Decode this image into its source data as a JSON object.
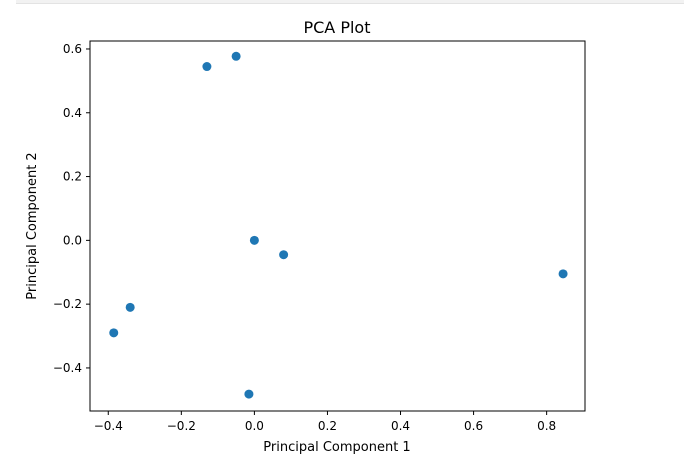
{
  "chart_data": {
    "type": "scatter",
    "title": "PCA Plot",
    "xlabel": "Principal Component 1",
    "ylabel": "Principal Component 2",
    "xlim": [
      -0.45,
      0.905
    ],
    "ylim": [
      -0.535,
      0.625
    ],
    "xticks": [
      "−0.4",
      "−0.2",
      "0.0",
      "0.2",
      "0.4",
      "0.6",
      "0.8"
    ],
    "xtick_values": [
      -0.4,
      -0.2,
      0.0,
      0.2,
      0.4,
      0.6,
      0.8
    ],
    "yticks": [
      "−0.4",
      "−0.2",
      "0.0",
      "0.2",
      "0.4",
      "0.6"
    ],
    "ytick_values": [
      -0.4,
      -0.2,
      0.0,
      0.2,
      0.4,
      0.6
    ],
    "grid": false,
    "marker_color": "#1f77b4",
    "points": [
      {
        "x": -0.13,
        "y": 0.545
      },
      {
        "x": -0.05,
        "y": 0.577
      },
      {
        "x": 0.0,
        "y": 0.0
      },
      {
        "x": 0.08,
        "y": -0.045
      },
      {
        "x": 0.845,
        "y": -0.105
      },
      {
        "x": -0.34,
        "y": -0.21
      },
      {
        "x": -0.385,
        "y": -0.29
      },
      {
        "x": -0.015,
        "y": -0.482
      }
    ]
  }
}
